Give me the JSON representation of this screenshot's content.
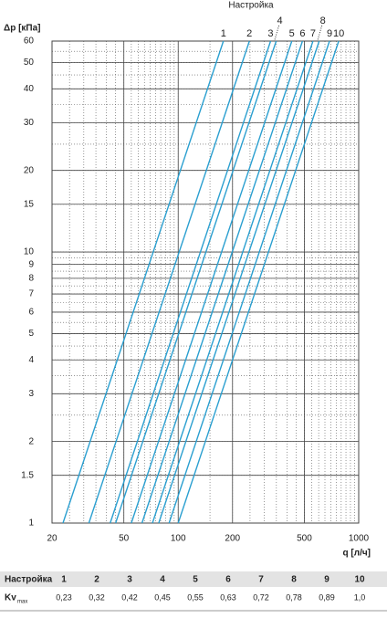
{
  "chart_data": {
    "type": "line",
    "title": "Настройка",
    "ylabel": "Δp [кПа]",
    "xlabel": "q [л/ч]",
    "log_x": true,
    "log_y": true,
    "grid": true,
    "color": "#2a9fd0",
    "xlim": [
      20,
      1000
    ],
    "ylim": [
      1,
      60
    ],
    "xticks": [
      20,
      50,
      100,
      200,
      500,
      1000
    ],
    "yticks": [
      1,
      1.5,
      2,
      3,
      4,
      5,
      6,
      7,
      8,
      9,
      10,
      15,
      20,
      30,
      40,
      50,
      60
    ],
    "series": [
      {
        "name": "1",
        "x": [
          23,
          178
        ],
        "values": [
          1,
          60
        ]
      },
      {
        "name": "2",
        "x": [
          32,
          248
        ],
        "values": [
          1,
          60
        ]
      },
      {
        "name": "3",
        "x": [
          42,
          325
        ],
        "values": [
          1,
          60
        ]
      },
      {
        "name": "4",
        "x": [
          45,
          349
        ],
        "values": [
          1,
          60
        ]
      },
      {
        "name": "5",
        "x": [
          55,
          426
        ],
        "values": [
          1,
          60
        ]
      },
      {
        "name": "6",
        "x": [
          63,
          488
        ],
        "values": [
          1,
          60
        ]
      },
      {
        "name": "7",
        "x": [
          72,
          558
        ],
        "values": [
          1,
          60
        ]
      },
      {
        "name": "8",
        "x": [
          78,
          604
        ],
        "values": [
          1,
          60
        ]
      },
      {
        "name": "9",
        "x": [
          89,
          689
        ],
        "values": [
          1,
          60
        ]
      },
      {
        "name": "10",
        "x": [
          100,
          775
        ],
        "values": [
          1,
          60
        ]
      }
    ]
  },
  "table": {
    "header": [
      "Настройка",
      "1",
      "2",
      "3",
      "4",
      "5",
      "6",
      "7",
      "8",
      "9",
      "10"
    ],
    "row_label": "Kv",
    "row_label_sub": "max",
    "row": [
      "0,23",
      "0,32",
      "0,42",
      "0,45",
      "0,55",
      "0,63",
      "0,72",
      "0,78",
      "0,89",
      "1,0"
    ]
  }
}
